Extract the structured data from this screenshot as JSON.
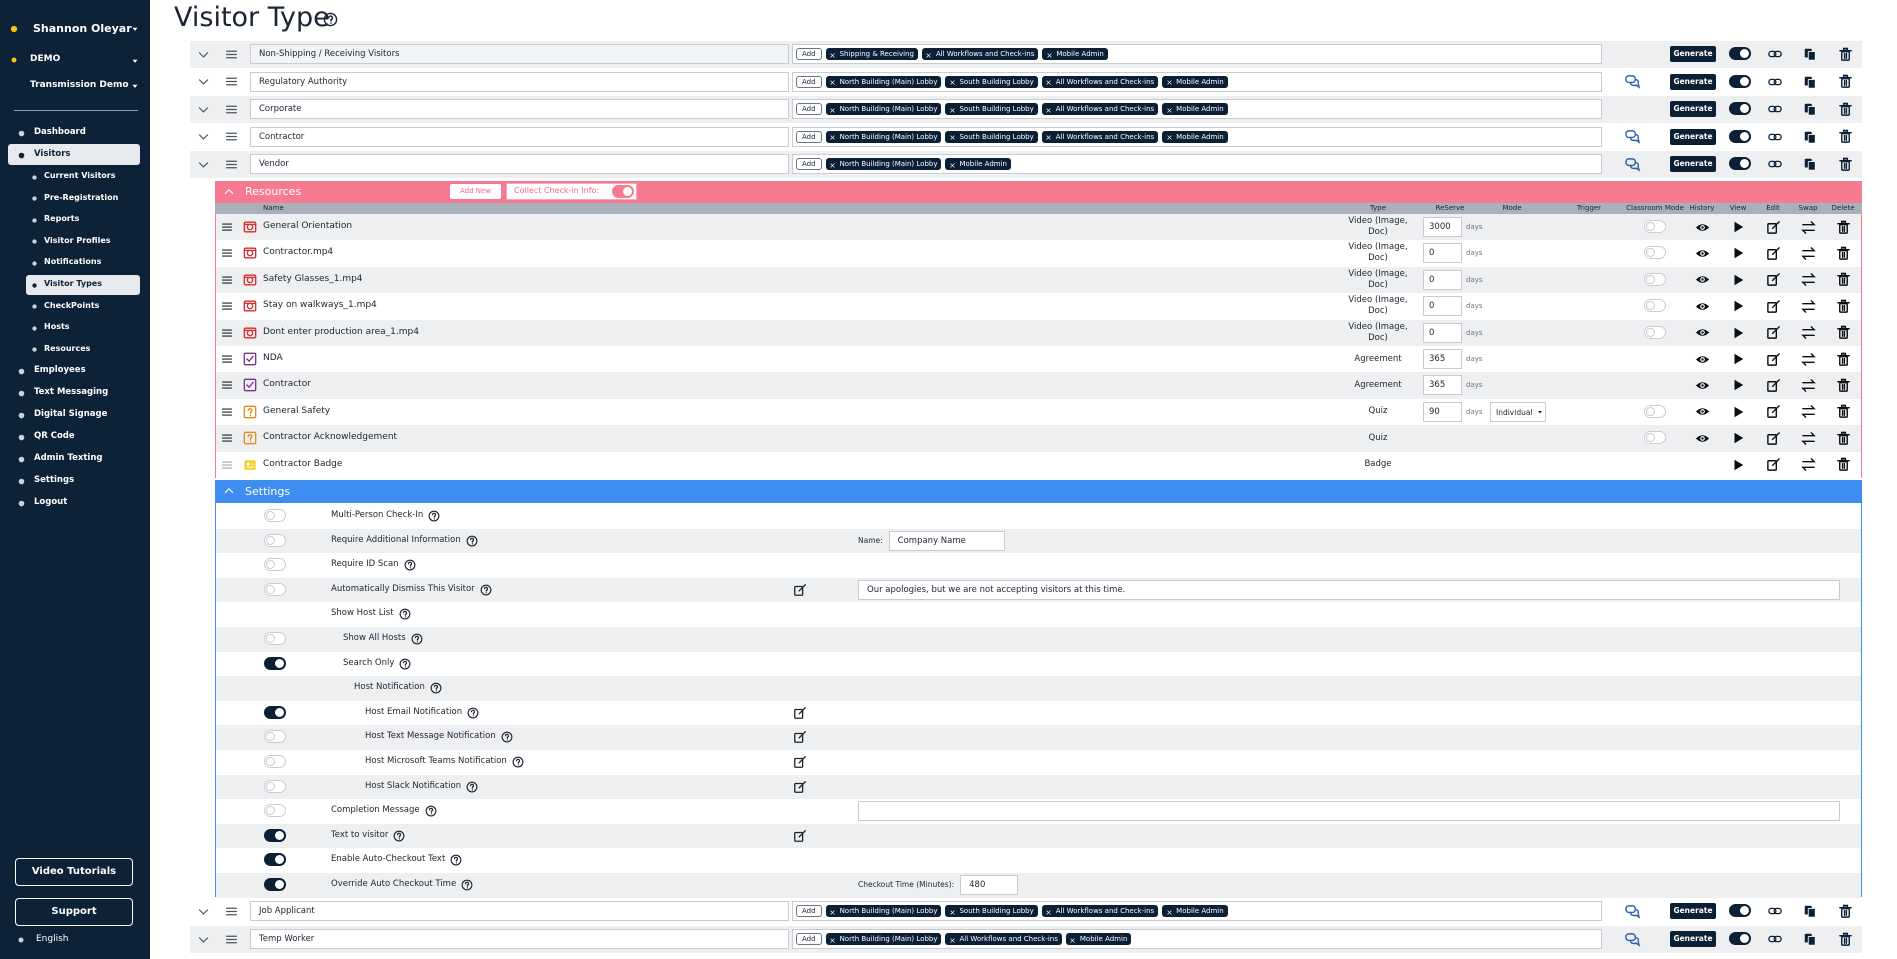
{
  "sidebar": {
    "user": "Shannon Oleyar",
    "org": "DEMO",
    "site": "Transmission Demo",
    "nav": [
      {
        "label": "Dashboard"
      },
      {
        "label": "Visitors",
        "active": true,
        "children": [
          {
            "label": "Current Visitors"
          },
          {
            "label": "Pre-Registration"
          },
          {
            "label": "Reports"
          },
          {
            "label": "Visitor Profiles"
          },
          {
            "label": "Notifications"
          },
          {
            "label": "Visitor Types",
            "active": true
          },
          {
            "label": "CheckPoints"
          },
          {
            "label": "Hosts"
          },
          {
            "label": "Resources"
          }
        ]
      },
      {
        "label": "Employees"
      },
      {
        "label": "Text Messaging"
      },
      {
        "label": "Digital Signage"
      },
      {
        "label": "QR Code"
      },
      {
        "label": "Admin Texting"
      },
      {
        "label": "Settings"
      },
      {
        "label": "Logout"
      }
    ],
    "buttons": [
      "Video Tutorials",
      "Support"
    ],
    "language": "English"
  },
  "header": {
    "title": "Visitor Type"
  },
  "labels": {
    "add": "Add",
    "generate": "Generate"
  },
  "visitor_types_top": [
    {
      "name": "Non-Shipping / Receiving Visitors",
      "tags": [
        "Shipping & Receiving",
        "All Workflows and Check-ins",
        "Mobile Admin"
      ],
      "chat": false
    },
    {
      "name": "Regulatory Authority",
      "tags": [
        "North Building (Main) Lobby",
        "South Building Lobby",
        "All Workflows and Check-ins",
        "Mobile Admin"
      ],
      "chat": true
    },
    {
      "name": "Corporate",
      "tags": [
        "North Building (Main) Lobby",
        "South Building Lobby",
        "All Workflows and Check-ins",
        "Mobile Admin"
      ],
      "chat": false
    },
    {
      "name": "Contractor",
      "tags": [
        "North Building (Main) Lobby",
        "South Building Lobby",
        "All Workflows and Check-ins",
        "Mobile Admin"
      ],
      "chat": true
    },
    {
      "name": "Vendor",
      "tags": [
        "North Building (Main) Lobby",
        "Mobile Admin"
      ],
      "chat": true
    }
  ],
  "resources": {
    "title": "Resources",
    "add_new": "Add New",
    "collect": "Collect Check-in Info:",
    "days": "days",
    "columns": [
      "Name",
      "Type",
      "ReServe",
      "Mode",
      "Trigger",
      "Classroom Mode",
      "History",
      "View",
      "Edit",
      "Swap",
      "Delete"
    ],
    "rows": [
      {
        "name": "General Orientation",
        "type": "Video (Image, Doc)",
        "reserve": 3000,
        "classroom": true,
        "history": true
      },
      {
        "name": "Contractor.mp4",
        "type": "Video (Image, Doc)",
        "reserve": 0,
        "classroom": true,
        "history": true
      },
      {
        "name": "Safety Glasses_1.mp4",
        "type": "Video (Image, Doc)",
        "reserve": 0,
        "classroom": true,
        "history": true
      },
      {
        "name": "Stay on walkways_1.mp4",
        "type": "Video (Image, Doc)",
        "reserve": 0,
        "classroom": true,
        "history": true
      },
      {
        "name": "Dont enter production area_1.mp4",
        "type": "Video (Image, Doc)",
        "reserve": 0,
        "classroom": true,
        "history": true
      },
      {
        "name": "NDA",
        "type": "Agreement",
        "reserve": 365,
        "classroom": false,
        "history": true
      },
      {
        "name": "Contractor",
        "type": "Agreement",
        "reserve": 365,
        "classroom": false,
        "history": true
      },
      {
        "name": "General Safety",
        "type": "Quiz",
        "reserve": 90,
        "mode": "Individual",
        "classroom": true,
        "history": true
      },
      {
        "name": "Contractor Acknowledgement",
        "type": "Quiz",
        "classroom": true,
        "history": true
      },
      {
        "name": "Contractor Badge",
        "type": "Badge",
        "classroom": false,
        "history": false
      }
    ]
  },
  "settings": {
    "title": "Settings",
    "rows": [
      {
        "label": "Multi-Person Check-In",
        "level": 0,
        "toggle": false
      },
      {
        "label": "Require Additional Information",
        "level": 0,
        "toggle": false,
        "field_label": "Name:",
        "field_value": "Company Name"
      },
      {
        "label": "Require ID Scan",
        "level": 0,
        "toggle": false
      },
      {
        "label": "Automatically Dismiss This Visitor",
        "level": 0,
        "toggle": false,
        "edit": true,
        "field_value": "Our apologies, but we are not accepting visitors at this time."
      },
      {
        "label": "Show Host List",
        "level": 0
      },
      {
        "label": "Show All Hosts",
        "level": 1,
        "toggle": false
      },
      {
        "label": "Search Only",
        "level": 1,
        "toggle": true
      },
      {
        "label": "Host Notification",
        "level": 2
      },
      {
        "label": "Host Email Notification",
        "level": 3,
        "toggle": true,
        "edit": true
      },
      {
        "label": "Host Text Message Notification",
        "level": 3,
        "toggle": false,
        "edit": true
      },
      {
        "label": "Host Microsoft Teams Notification",
        "level": 3,
        "toggle": false,
        "edit": true
      },
      {
        "label": "Host Slack Notification",
        "level": 3,
        "toggle": false,
        "edit": true
      },
      {
        "label": "Completion Message",
        "level": 0,
        "toggle": false,
        "input": true
      },
      {
        "label": "Text to visitor",
        "level": 0,
        "toggle": true,
        "edit": true
      },
      {
        "label": "Enable Auto-Checkout Text",
        "level": 0,
        "toggle": true
      },
      {
        "label": "Override Auto Checkout Time",
        "level": 0,
        "toggle": true,
        "field_label": "Checkout Time (Minutes):",
        "field_value": 480
      }
    ]
  },
  "visitor_types_bottom": [
    {
      "name": "Job Applicant",
      "tags": [
        "North Building (Main) Lobby",
        "South Building Lobby",
        "All Workflows and Check-ins",
        "Mobile Admin"
      ],
      "chat": true
    },
    {
      "name": "Temp Worker",
      "tags": [
        "North Building (Main) Lobby",
        "All Workflows and Check-ins",
        "Mobile Admin"
      ],
      "chat": true
    }
  ]
}
